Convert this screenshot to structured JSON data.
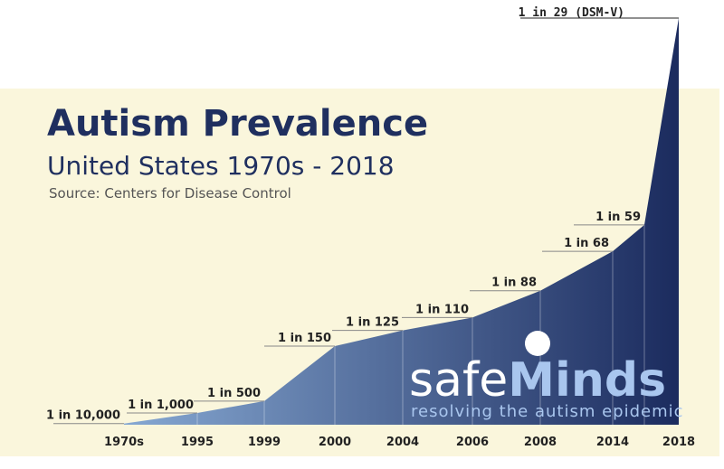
{
  "chart_data": {
    "type": "area",
    "title": "Autism Prevalence",
    "subtitle": "United States 1970s - 2018",
    "source": "Source: Centers for Disease Control",
    "categories": [
      "1970s",
      "1995",
      "1999",
      "2000",
      "2004",
      "2006",
      "2008",
      "2014",
      null,
      "2018"
    ],
    "values": [
      10000,
      1000,
      500,
      150,
      125,
      110,
      88,
      68,
      59,
      29
    ],
    "value_labels": [
      "1 in 10,000",
      "1 in 1,000",
      "1 in 500",
      "1 in 150",
      "1 in 125",
      "1 in 110",
      "1 in 88",
      "1 in 68",
      "1 in 59",
      "1 in 29 (DSM-V)"
    ],
    "color_start": "#86a8d2",
    "color_end": "#1b2b5e",
    "logo_text": [
      "safe",
      "Minds"
    ],
    "logo_tagline": "resolving the autism epidemic"
  }
}
